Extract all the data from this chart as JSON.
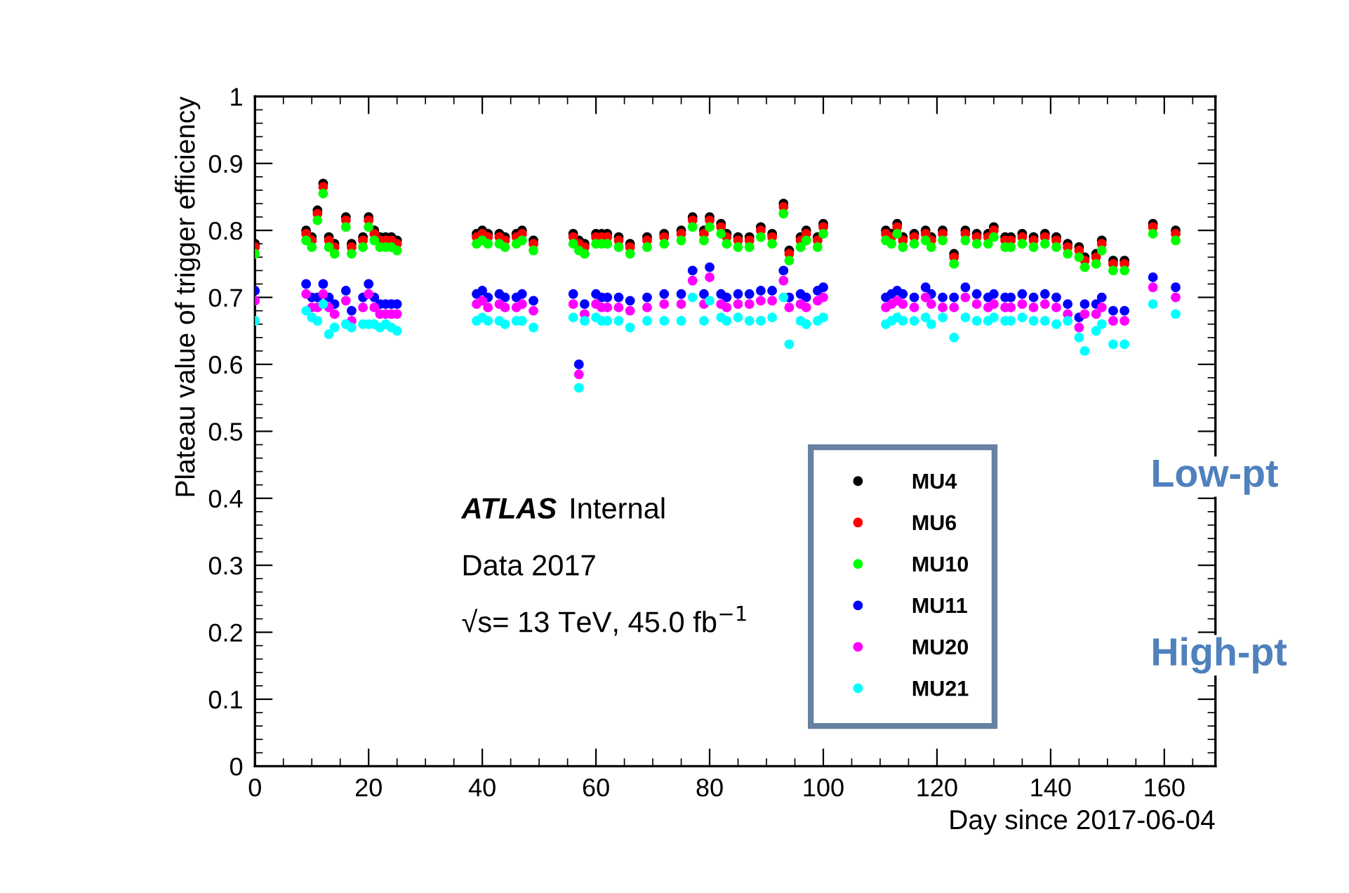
{
  "chart_data": {
    "type": "scatter",
    "xlabel": "Day since 2017-06-04",
    "ylabel": "Plateau value of trigger efficiency",
    "x": [
      0,
      9,
      10,
      11,
      12,
      13,
      14,
      16,
      17,
      19,
      20,
      21,
      22,
      23,
      24,
      25,
      39,
      40,
      41,
      43,
      44,
      46,
      47,
      49,
      56,
      57,
      58,
      60,
      61,
      62,
      64,
      66,
      69,
      72,
      75,
      77,
      79,
      80,
      82,
      83,
      85,
      87,
      89,
      91,
      93,
      94,
      96,
      97,
      99,
      100,
      111,
      112,
      113,
      114,
      116,
      118,
      119,
      121,
      123,
      125,
      127,
      129,
      130,
      132,
      133,
      135,
      137,
      139,
      141,
      143,
      145,
      146,
      148,
      149,
      151,
      153,
      158,
      162
    ],
    "series": [
      {
        "name": "MU4",
        "color": "#000000",
        "values": [
          0.78,
          0.8,
          0.79,
          0.83,
          0.87,
          0.79,
          0.78,
          0.82,
          0.78,
          0.79,
          0.82,
          0.8,
          0.79,
          0.79,
          0.79,
          0.785,
          0.795,
          0.8,
          0.795,
          0.795,
          0.79,
          0.795,
          0.8,
          0.785,
          0.795,
          0.785,
          0.78,
          0.795,
          0.795,
          0.795,
          0.79,
          0.78,
          0.79,
          0.795,
          0.8,
          0.82,
          0.8,
          0.82,
          0.81,
          0.795,
          0.79,
          0.79,
          0.805,
          0.795,
          0.84,
          0.77,
          0.79,
          0.8,
          0.79,
          0.81,
          0.8,
          0.795,
          0.81,
          0.79,
          0.795,
          0.8,
          0.79,
          0.8,
          0.765,
          0.8,
          0.795,
          0.795,
          0.805,
          0.79,
          0.79,
          0.795,
          0.79,
          0.795,
          0.79,
          0.78,
          0.775,
          0.76,
          0.765,
          0.785,
          0.755,
          0.755,
          0.81,
          0.8
        ]
      },
      {
        "name": "MU6",
        "color": "#ff0000",
        "values": [
          0.775,
          0.795,
          0.785,
          0.825,
          0.865,
          0.785,
          0.775,
          0.815,
          0.775,
          0.785,
          0.815,
          0.795,
          0.785,
          0.785,
          0.785,
          0.78,
          0.79,
          0.795,
          0.79,
          0.79,
          0.785,
          0.79,
          0.795,
          0.78,
          0.79,
          0.78,
          0.775,
          0.79,
          0.79,
          0.79,
          0.785,
          0.775,
          0.785,
          0.79,
          0.795,
          0.815,
          0.795,
          0.815,
          0.805,
          0.79,
          0.785,
          0.785,
          0.8,
          0.79,
          0.835,
          0.765,
          0.785,
          0.795,
          0.785,
          0.805,
          0.795,
          0.79,
          0.805,
          0.785,
          0.79,
          0.795,
          0.785,
          0.795,
          0.76,
          0.795,
          0.79,
          0.79,
          0.8,
          0.785,
          0.785,
          0.79,
          0.785,
          0.79,
          0.785,
          0.775,
          0.77,
          0.755,
          0.76,
          0.78,
          0.75,
          0.75,
          0.805,
          0.795
        ]
      },
      {
        "name": "MU10",
        "color": "#00ff00",
        "values": [
          0.765,
          0.785,
          0.775,
          0.815,
          0.855,
          0.775,
          0.765,
          0.805,
          0.765,
          0.775,
          0.805,
          0.785,
          0.775,
          0.775,
          0.775,
          0.77,
          0.78,
          0.785,
          0.78,
          0.78,
          0.775,
          0.78,
          0.785,
          0.77,
          0.78,
          0.77,
          0.765,
          0.78,
          0.78,
          0.78,
          0.775,
          0.765,
          0.775,
          0.78,
          0.785,
          0.805,
          0.785,
          0.805,
          0.795,
          0.78,
          0.775,
          0.775,
          0.79,
          0.78,
          0.825,
          0.755,
          0.775,
          0.785,
          0.775,
          0.795,
          0.785,
          0.78,
          0.795,
          0.775,
          0.78,
          0.785,
          0.775,
          0.785,
          0.75,
          0.785,
          0.78,
          0.78,
          0.79,
          0.775,
          0.775,
          0.78,
          0.775,
          0.78,
          0.775,
          0.765,
          0.76,
          0.745,
          0.75,
          0.77,
          0.74,
          0.74,
          0.795,
          0.785
        ]
      },
      {
        "name": "MU11",
        "color": "#0000ff",
        "values": [
          0.71,
          0.72,
          0.7,
          0.7,
          0.72,
          0.7,
          0.69,
          0.71,
          0.68,
          0.7,
          0.72,
          0.7,
          0.69,
          0.69,
          0.69,
          0.69,
          0.705,
          0.71,
          0.7,
          0.705,
          0.7,
          0.7,
          0.705,
          0.695,
          0.705,
          0.6,
          0.69,
          0.705,
          0.7,
          0.7,
          0.7,
          0.695,
          0.7,
          0.705,
          0.705,
          0.74,
          0.705,
          0.745,
          0.705,
          0.7,
          0.705,
          0.705,
          0.71,
          0.71,
          0.74,
          0.7,
          0.705,
          0.7,
          0.71,
          0.715,
          0.7,
          0.705,
          0.71,
          0.705,
          0.7,
          0.715,
          0.705,
          0.7,
          0.7,
          0.715,
          0.705,
          0.7,
          0.705,
          0.7,
          0.7,
          0.705,
          0.7,
          0.705,
          0.7,
          0.69,
          0.67,
          0.69,
          0.69,
          0.7,
          0.68,
          0.68,
          0.73,
          0.715
        ]
      },
      {
        "name": "MU20",
        "color": "#ff00ff",
        "values": [
          0.695,
          0.705,
          0.685,
          0.685,
          0.705,
          0.685,
          0.675,
          0.695,
          0.665,
          0.685,
          0.705,
          0.685,
          0.675,
          0.675,
          0.675,
          0.675,
          0.69,
          0.695,
          0.685,
          0.69,
          0.685,
          0.685,
          0.69,
          0.68,
          0.69,
          0.585,
          0.675,
          0.69,
          0.685,
          0.685,
          0.685,
          0.68,
          0.685,
          0.69,
          0.69,
          0.725,
          0.69,
          0.73,
          0.69,
          0.685,
          0.69,
          0.69,
          0.695,
          0.695,
          0.725,
          0.685,
          0.69,
          0.685,
          0.695,
          0.7,
          0.685,
          0.69,
          0.695,
          0.69,
          0.685,
          0.7,
          0.69,
          0.685,
          0.685,
          0.7,
          0.69,
          0.685,
          0.69,
          0.685,
          0.685,
          0.69,
          0.685,
          0.69,
          0.685,
          0.675,
          0.655,
          0.675,
          0.675,
          0.685,
          0.665,
          0.665,
          0.715,
          0.7
        ]
      },
      {
        "name": "MU21",
        "color": "#00ffff",
        "values": [
          0.665,
          0.68,
          0.67,
          0.665,
          0.69,
          0.645,
          0.655,
          0.66,
          0.655,
          0.66,
          0.66,
          0.66,
          0.655,
          0.66,
          0.655,
          0.65,
          0.665,
          0.67,
          0.665,
          0.665,
          0.66,
          0.665,
          0.665,
          0.655,
          0.67,
          0.565,
          0.665,
          0.67,
          0.665,
          0.665,
          0.665,
          0.655,
          0.665,
          0.665,
          0.665,
          0.7,
          0.665,
          0.695,
          0.67,
          0.665,
          0.67,
          0.665,
          0.665,
          0.67,
          0.7,
          0.63,
          0.665,
          0.66,
          0.665,
          0.67,
          0.66,
          0.665,
          0.67,
          0.665,
          0.665,
          0.67,
          0.66,
          0.67,
          0.64,
          0.67,
          0.665,
          0.665,
          0.67,
          0.665,
          0.665,
          0.67,
          0.665,
          0.665,
          0.66,
          0.665,
          0.64,
          0.62,
          0.65,
          0.66,
          0.63,
          0.63,
          0.69,
          0.675
        ]
      }
    ],
    "xlim": [
      0,
      169
    ],
    "xticks": [
      0,
      20,
      40,
      60,
      80,
      100,
      120,
      140,
      160
    ],
    "ylim": [
      0,
      1
    ],
    "yticks": [
      0,
      0.1,
      0.2,
      0.3,
      0.4,
      0.5,
      0.6,
      0.7,
      0.8,
      0.9,
      1
    ],
    "marker": "circle",
    "grid": false,
    "legend": "bottom right",
    "annotations": [
      "ATLAS",
      "Internal",
      "Data 2017",
      "√s= 13 TeV, 45.0 fb$^{−1}$",
      "Low-pt",
      "High-pt"
    ]
  }
}
